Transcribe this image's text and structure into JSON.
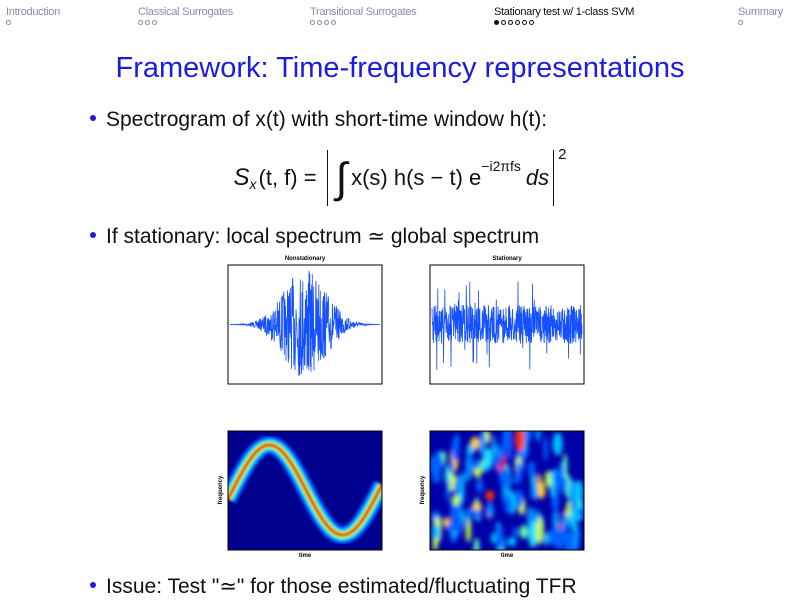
{
  "header": {
    "sections": [
      {
        "title": "Introduction"
      },
      {
        "title": "Classical Surrogates"
      },
      {
        "title": "Transitional Surrogates"
      },
      {
        "title": "Stationary test w/ 1-class SVM"
      },
      {
        "title": "Summary"
      }
    ]
  },
  "title": "Framework: Time-frequency representations",
  "bullets": [
    "Spectrogram of x(t) with short-time window h(t):",
    "If stationary: local spectrum ≃ global spectrum",
    "Issue: Test \"≃\" for those estimated/fluctuating TFR"
  ],
  "formula": {
    "symbol": "S",
    "subscript": "x",
    "args": "(t, f) =",
    "integral": "∫",
    "body": "x(s) h(s − t) e",
    "exponent": "−i2πfs",
    "tail": "ds",
    "power": "2"
  },
  "figures": [
    {
      "title": "Nonstationary"
    },
    {
      "title": "Stationary"
    },
    {
      "ylabel": "frequency",
      "xlabel": "time"
    },
    {
      "ylabel": "frequency",
      "xlabel": "time"
    }
  ]
}
